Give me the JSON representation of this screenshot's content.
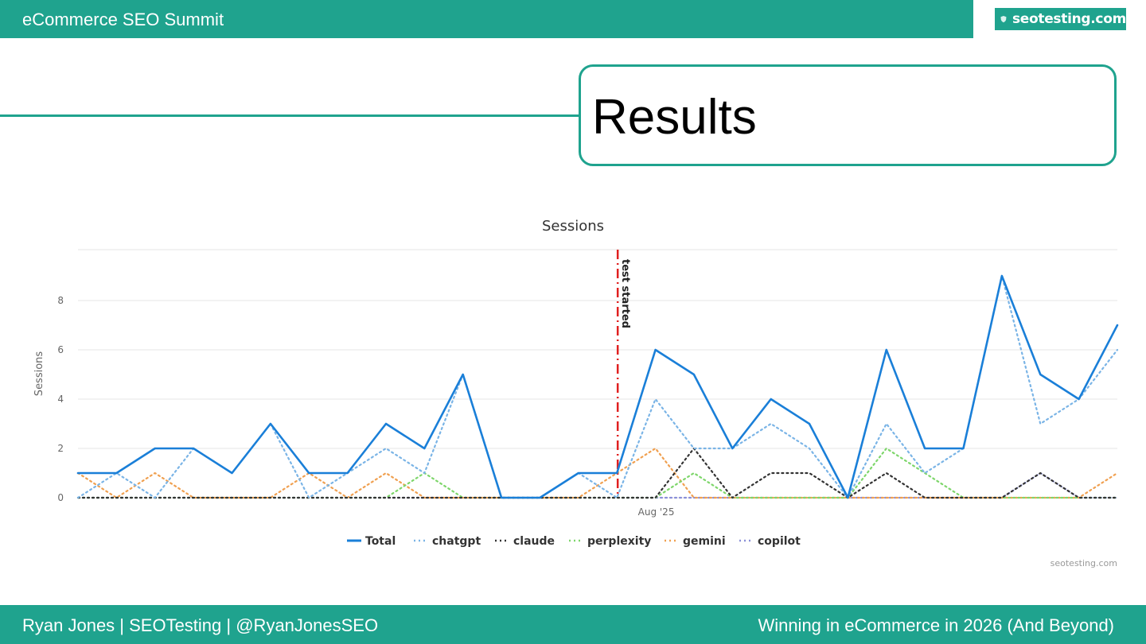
{
  "header": {
    "event_title": "eCommerce SEO Summit",
    "logo_text": "seotesting.com"
  },
  "slide": {
    "title": "Results"
  },
  "footer": {
    "speaker": "Ryan Jones | SEOTesting | @RyanJonesSEO",
    "talk_title": "Winning in eCommerce in 2026 (And Beyond)"
  },
  "chart_data": {
    "type": "line",
    "title": "Sessions",
    "ylabel": "Sessions",
    "xlabel": "",
    "ylim": [
      0,
      10
    ],
    "yticks": [
      0,
      2,
      4,
      6,
      8
    ],
    "grid": true,
    "legend_position": "bottom",
    "credit": "seotesting.com",
    "x_tick_labels": [
      {
        "index": 15,
        "label": "Aug '25"
      }
    ],
    "annotation": {
      "index": 14,
      "label": "test started",
      "color": "#e02020"
    },
    "series": [
      {
        "name": "Total",
        "style": "solid",
        "color": "#1a7fd8",
        "values": [
          1,
          1,
          2,
          2,
          1,
          3,
          1,
          1,
          3,
          2,
          5,
          0,
          0,
          1,
          1,
          6,
          5,
          2,
          4,
          3,
          0,
          6,
          2,
          2,
          9,
          5,
          4,
          7
        ]
      },
      {
        "name": "chatgpt",
        "style": "dotted",
        "color": "#7ab4e6",
        "values": [
          0,
          1,
          0,
          2,
          1,
          3,
          0,
          1,
          2,
          1,
          5,
          0,
          0,
          1,
          0,
          4,
          2,
          2,
          3,
          2,
          0,
          3,
          1,
          2,
          9,
          3,
          4,
          6
        ]
      },
      {
        "name": "claude",
        "style": "dotted",
        "color": "#333333",
        "values": [
          0,
          0,
          0,
          0,
          0,
          0,
          0,
          0,
          0,
          0,
          0,
          0,
          0,
          0,
          0,
          0,
          2,
          0,
          1,
          1,
          0,
          1,
          0,
          0,
          0,
          1,
          0,
          0
        ]
      },
      {
        "name": "perplexity",
        "style": "dotted",
        "color": "#7ed66b",
        "values": [
          0,
          0,
          0,
          0,
          0,
          0,
          0,
          0,
          0,
          1,
          0,
          0,
          0,
          0,
          0,
          0,
          1,
          0,
          0,
          0,
          0,
          2,
          1,
          0,
          0,
          0,
          0,
          0
        ]
      },
      {
        "name": "gemini",
        "style": "dotted",
        "color": "#f0a050",
        "values": [
          1,
          0,
          1,
          0,
          0,
          0,
          1,
          0,
          1,
          0,
          0,
          0,
          0,
          0,
          1,
          2,
          0,
          0,
          0,
          0,
          0,
          0,
          0,
          0,
          0,
          0,
          0,
          1
        ]
      },
      {
        "name": "copilot",
        "style": "dotted",
        "color": "#8a8fd8",
        "values": [
          0,
          0,
          0,
          0,
          0,
          0,
          0,
          0,
          0,
          0,
          0,
          0,
          0,
          0,
          0,
          0,
          0,
          0,
          0,
          0,
          0,
          0,
          0,
          0,
          0,
          1,
          0,
          0
        ]
      }
    ]
  }
}
